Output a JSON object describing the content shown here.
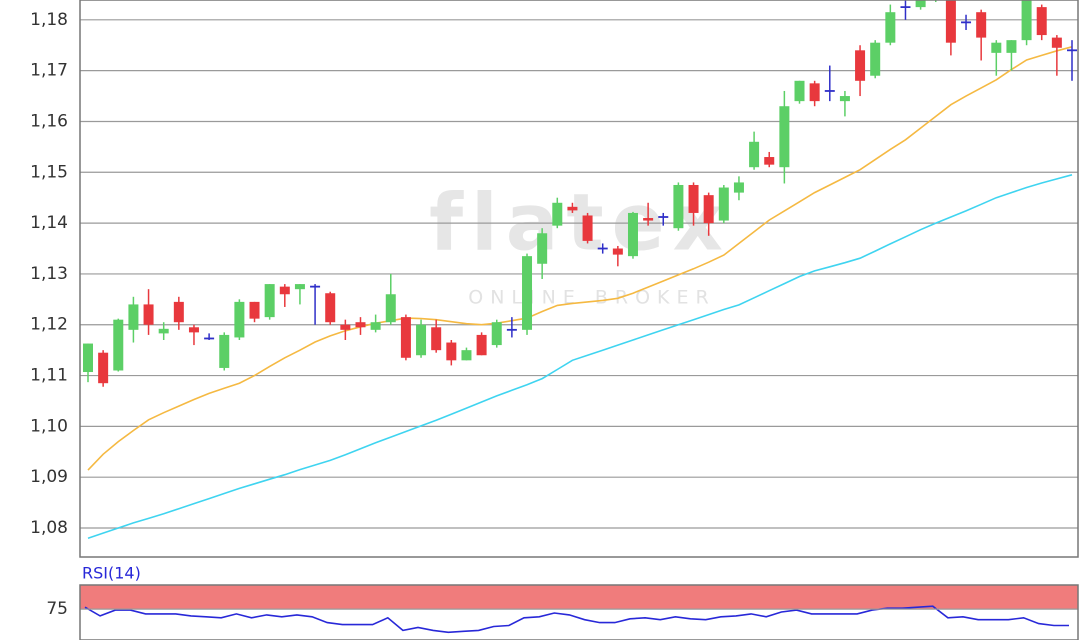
{
  "chart_data": [
    {
      "type": "candlestick",
      "watermark": {
        "logo": "flatex",
        "tagline": "ONLINE BROKER"
      },
      "up_color": "#5ccf66",
      "down_color": "#e8383d",
      "doji_color": "#2f2fc8",
      "open": [
        1.1107,
        1.1145,
        1.111,
        1.119,
        1.124,
        1.1183,
        1.1245,
        1.1195,
        1.1173,
        1.1115,
        1.1175,
        1.1245,
        1.1215,
        1.1275,
        1.127,
        1.1275,
        1.1262,
        1.12,
        1.1205,
        1.119,
        1.1205,
        1.1215,
        1.114,
        1.1195,
        1.1165,
        1.113,
        1.118,
        1.116,
        1.119,
        1.119,
        1.132,
        1.1395,
        1.1432,
        1.1415,
        1.135,
        1.135,
        1.1335,
        1.141,
        1.1412,
        1.139,
        1.1475,
        1.1455,
        1.1405,
        1.146,
        1.151,
        1.153,
        1.151,
        1.164,
        1.1675,
        1.166,
        1.164,
        1.174,
        1.169,
        1.1755,
        1.1825,
        1.1825,
        1.184,
        1.184,
        1.1795,
        1.1815,
        1.1735,
        1.1735,
        1.176,
        1.1825,
        1.1765,
        1.174
      ],
      "high": [
        1.1163,
        1.115,
        1.1212,
        1.1255,
        1.127,
        1.1205,
        1.1255,
        1.12,
        1.1183,
        1.1185,
        1.125,
        1.1245,
        1.128,
        1.128,
        1.128,
        1.128,
        1.1265,
        1.121,
        1.1215,
        1.122,
        1.13,
        1.122,
        1.121,
        1.121,
        1.117,
        1.1155,
        1.1185,
        1.121,
        1.1215,
        1.134,
        1.139,
        1.145,
        1.144,
        1.142,
        1.136,
        1.1355,
        1.1422,
        1.144,
        1.142,
        1.148,
        1.148,
        1.146,
        1.1475,
        1.1492,
        1.158,
        1.154,
        1.166,
        1.168,
        1.168,
        1.171,
        1.166,
        1.175,
        1.176,
        1.183,
        1.184,
        1.185,
        1.1855,
        1.1845,
        1.181,
        1.182,
        1.176,
        1.176,
        1.185,
        1.183,
        1.177,
        1.176
      ],
      "low": [
        1.1087,
        1.1078,
        1.1108,
        1.1165,
        1.118,
        1.117,
        1.119,
        1.116,
        1.117,
        1.111,
        1.117,
        1.1205,
        1.121,
        1.1235,
        1.124,
        1.12,
        1.12,
        1.117,
        1.118,
        1.1185,
        1.12,
        1.113,
        1.1135,
        1.1145,
        1.112,
        1.113,
        1.114,
        1.1155,
        1.1175,
        1.118,
        1.129,
        1.139,
        1.142,
        1.136,
        1.134,
        1.1315,
        1.133,
        1.1395,
        1.1395,
        1.1385,
        1.1395,
        1.1375,
        1.14,
        1.1445,
        1.1505,
        1.151,
        1.1478,
        1.1635,
        1.163,
        1.164,
        1.161,
        1.165,
        1.1685,
        1.175,
        1.18,
        1.182,
        1.1835,
        1.173,
        1.178,
        1.172,
        1.169,
        1.17,
        1.175,
        1.176,
        1.169,
        1.168
      ],
      "close": [
        1.1163,
        1.1085,
        1.121,
        1.124,
        1.12,
        1.1192,
        1.1205,
        1.1185,
        1.1173,
        1.118,
        1.1245,
        1.1212,
        1.128,
        1.126,
        1.128,
        1.1275,
        1.1205,
        1.119,
        1.1195,
        1.1205,
        1.126,
        1.1135,
        1.12,
        1.115,
        1.113,
        1.115,
        1.114,
        1.1205,
        1.119,
        1.1335,
        1.138,
        1.144,
        1.1425,
        1.1365,
        1.135,
        1.1338,
        1.142,
        1.1405,
        1.1412,
        1.1475,
        1.142,
        1.14,
        1.147,
        1.148,
        1.156,
        1.1515,
        1.163,
        1.168,
        1.164,
        1.166,
        1.165,
        1.168,
        1.1755,
        1.1815,
        1.1825,
        1.1845,
        1.185,
        1.1755,
        1.1795,
        1.1765,
        1.1755,
        1.176,
        1.185,
        1.177,
        1.1745,
        1.174
      ],
      "overlays": [
        {
          "color": "#f5b942",
          "values": [
            1.0914,
            1.0945,
            1.097,
            1.0992,
            1.1013,
            1.1027,
            1.104,
            1.1053,
            1.1065,
            1.1075,
            1.1085,
            1.11,
            1.1118,
            1.1135,
            1.115,
            1.1166,
            1.1178,
            1.1188,
            1.1196,
            1.1203,
            1.1208,
            1.1213,
            1.1212,
            1.121,
            1.1206,
            1.1202,
            1.12,
            1.1203,
            1.1208,
            1.1213,
            1.1226,
            1.1238,
            1.1242,
            1.1245,
            1.1248,
            1.1252,
            1.1262,
            1.1274,
            1.1286,
            1.1298,
            1.131,
            1.1323,
            1.1337,
            1.136,
            1.1383,
            1.1406,
            1.1424,
            1.1442,
            1.146,
            1.1475,
            1.149,
            1.1505,
            1.1525,
            1.1545,
            1.1564,
            1.1587,
            1.161,
            1.1633,
            1.165,
            1.1666,
            1.1682,
            1.1702,
            1.1721,
            1.173,
            1.1739,
            1.1747
          ]
        },
        {
          "color": "#3fd4f0",
          "values": [
            1.078,
            1.079,
            1.08,
            1.081,
            1.0819,
            1.0828,
            1.0838,
            1.0848,
            1.0858,
            1.0868,
            1.0878,
            1.0887,
            1.0896,
            1.0905,
            1.0915,
            1.0924,
            1.0933,
            1.0944,
            1.0956,
            1.0968,
            1.0979,
            1.099,
            1.1001,
            1.1012,
            1.1024,
            1.1036,
            1.1048,
            1.106,
            1.1071,
            1.1082,
            1.1094,
            1.1112,
            1.113,
            1.114,
            1.115,
            1.116,
            1.117,
            1.118,
            1.119,
            1.12,
            1.121,
            1.122,
            1.123,
            1.1239,
            1.1253,
            1.1267,
            1.1281,
            1.1295,
            1.1306,
            1.1314,
            1.1322,
            1.1331,
            1.1345,
            1.1359,
            1.1373,
            1.1387,
            1.14,
            1.1412,
            1.1424,
            1.1437,
            1.145,
            1.146,
            1.147,
            1.1479,
            1.1487,
            1.1495
          ]
        }
      ],
      "ylim": [
        1.0743,
        1.1839
      ],
      "yticks": [
        {
          "value": 1.08,
          "label": "1,08"
        },
        {
          "value": 1.09,
          "label": "1,09"
        },
        {
          "value": 1.1,
          "label": "1,10"
        },
        {
          "value": 1.11,
          "label": "1,11"
        },
        {
          "value": 1.12,
          "label": "1,12"
        },
        {
          "value": 1.13,
          "label": "1,13"
        },
        {
          "value": 1.14,
          "label": "1,14"
        },
        {
          "value": 1.15,
          "label": "1,15"
        },
        {
          "value": 1.16,
          "label": "1,16"
        },
        {
          "value": 1.17,
          "label": "1,17"
        },
        {
          "value": 1.18,
          "label": "1,18"
        }
      ],
      "grid": true
    },
    {
      "type": "line",
      "title": "RSI(14)",
      "color": "#2828d8",
      "band": [
        75,
        100
      ],
      "band_color": "#f07c7c",
      "values": [
        77,
        68,
        74,
        74,
        70,
        70,
        70,
        68,
        67,
        66,
        70,
        66,
        69,
        67,
        69,
        67,
        61,
        59,
        59,
        59,
        66,
        53,
        56,
        53,
        51,
        52,
        53,
        57,
        58,
        66,
        67,
        71,
        69,
        64,
        61,
        61,
        65,
        66,
        64,
        67,
        65,
        64,
        67,
        68,
        70,
        67,
        72,
        74,
        70,
        70,
        70,
        70,
        74,
        76,
        76,
        77,
        78,
        66,
        67,
        64,
        64,
        64,
        66,
        60,
        58,
        58
      ],
      "ylim": [
        43,
        100
      ],
      "yticks": [
        75
      ],
      "grid": true
    }
  ]
}
